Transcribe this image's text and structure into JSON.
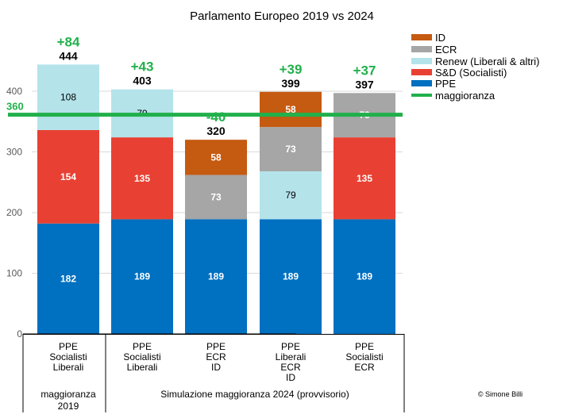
{
  "chart_data": {
    "type": "bar",
    "stacked": true,
    "title": "Parlamento Europeo 2019 vs 2024",
    "ylim": [
      0,
      480
    ],
    "yticks": [
      0,
      100,
      200,
      300,
      400
    ],
    "grid": true,
    "legend_position": "right",
    "categories": [
      [
        "PPE",
        "Socialisti",
        "Liberali"
      ],
      [
        "PPE",
        "Socialisti",
        "Liberali"
      ],
      [
        "PPE",
        "ECR",
        "ID"
      ],
      [
        "PPE",
        "Liberali",
        "ECR",
        "ID"
      ],
      [
        "PPE",
        "Socialisti",
        "ECR"
      ]
    ],
    "groups": [
      {
        "label": [
          "maggioranza",
          "2019"
        ],
        "span": 1
      },
      {
        "label": [
          "Simulazione maggioranza 2024 (provvisorio)"
        ],
        "span": 4
      }
    ],
    "series": [
      {
        "name": "PPE",
        "color": "#0070c0",
        "text_color": "#ffffff",
        "values": [
          182,
          189,
          189,
          189,
          189
        ]
      },
      {
        "name": "S&D (Socialisti)",
        "color": "#e84133",
        "text_color": "#ffffff",
        "values": [
          154,
          135,
          0,
          0,
          135
        ]
      },
      {
        "name": "Renew (Liberali & altri)",
        "color": "#b4e3ea",
        "text_color": "#000000",
        "values": [
          108,
          79,
          0,
          79,
          0
        ]
      },
      {
        "name": "ECR",
        "color": "#a6a6a6",
        "text_color": "#ffffff",
        "values": [
          0,
          0,
          73,
          73,
          73
        ]
      },
      {
        "name": "ID",
        "color": "#c55a11",
        "text_color": "#ffffff",
        "values": [
          0,
          0,
          58,
          58,
          0
        ]
      }
    ],
    "legend_order": [
      "ID",
      "ECR",
      "Renew (Liberali & altri)",
      "S&D (Socialisti)",
      "PPE"
    ],
    "totals": [
      444,
      403,
      320,
      399,
      397
    ],
    "deltas": [
      "+84",
      "+43",
      "-40",
      "+39",
      "+37"
    ],
    "majority": {
      "name": "maggioranza",
      "value": 360,
      "label": "360",
      "color": "#21b04b"
    },
    "credit": "© Simone Billi"
  }
}
